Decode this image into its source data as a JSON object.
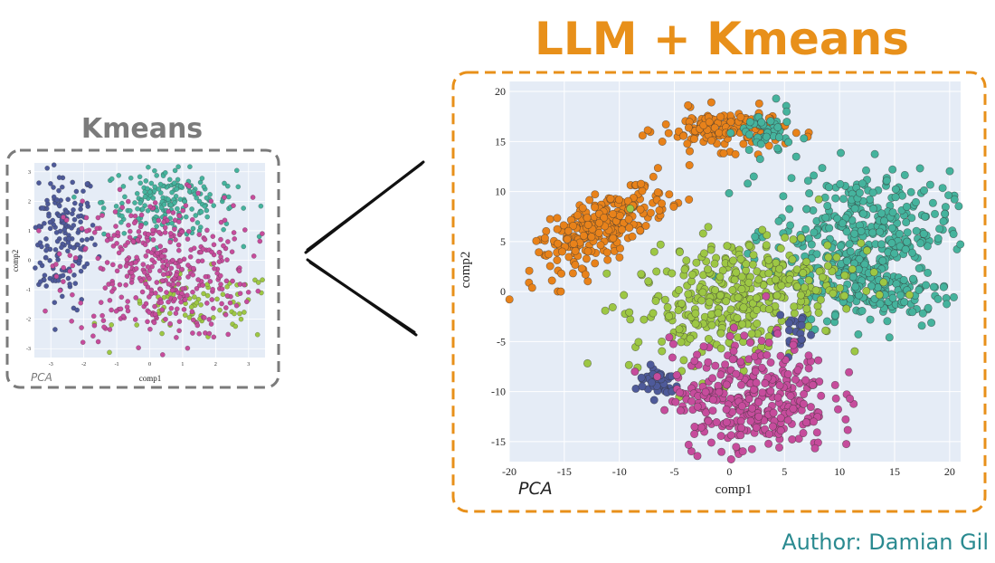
{
  "left_title": "Kmeans",
  "right_title": "LLM + Kmeans",
  "author": "Author: Damian Gil",
  "colors": {
    "accent_orange": "#e8901a",
    "left_title": "#7b7b7b",
    "author": "#2a8a90",
    "plot_bg": "#e5ecf6",
    "grid": "#ffffff",
    "frame_left": "#7b7b7b",
    "frame_right": "#e8901a"
  },
  "chart_data": [
    {
      "type": "scatter",
      "panel": "left",
      "title": "",
      "xlabel": "comp1",
      "ylabel": "comp2",
      "corner_note": "PCA",
      "xlim": [
        -3.5,
        3.5
      ],
      "ylim": [
        -3.3,
        3.3
      ],
      "xticks": [
        "-3",
        "-2",
        "-1",
        "0",
        "1",
        "2",
        "3"
      ],
      "xtick_values": [
        -3,
        -2,
        -1,
        0,
        1,
        2,
        3
      ],
      "yticks": [
        "3",
        "2",
        "1",
        "0",
        "-1",
        "-2",
        "-3"
      ],
      "ytick_values": [
        3,
        2,
        1,
        0,
        -1,
        -2,
        -3
      ],
      "series": [
        {
          "color": "#4e5a9a",
          "cx": -2.7,
          "cy": 0.8,
          "sx": 0.55,
          "sy": 1.2,
          "n": 180
        },
        {
          "color": "#45b39d",
          "cx": 0.6,
          "cy": 2.0,
          "sx": 1.0,
          "sy": 0.6,
          "n": 200
        },
        {
          "color": "#9dc744",
          "cx": 1.5,
          "cy": -1.6,
          "sx": 1.2,
          "sy": 0.6,
          "n": 80
        },
        {
          "color": "#c64c9c",
          "cx": 0.3,
          "cy": -0.3,
          "sx": 1.4,
          "sy": 1.2,
          "n": 420
        }
      ]
    },
    {
      "type": "scatter",
      "panel": "right",
      "title": "",
      "xlabel": "comp1",
      "ylabel": "comp2",
      "corner_note": "PCA",
      "xlim": [
        -20,
        21
      ],
      "ylim": [
        -17,
        21
      ],
      "xticks": [
        "-20",
        "-15",
        "-10",
        "-5",
        "0",
        "5",
        "10",
        "15",
        "20"
      ],
      "xtick_values": [
        -20,
        -15,
        -10,
        -5,
        0,
        5,
        10,
        15,
        20
      ],
      "yticks": [
        "20",
        "15",
        "10",
        "5",
        "0",
        "-5",
        "-10",
        "-15"
      ],
      "ytick_values": [
        20,
        15,
        10,
        5,
        0,
        -5,
        -10,
        -15
      ],
      "series": [
        {
          "color": "#e8821a",
          "cx": -11.5,
          "cy": 6.5,
          "sx": 3.0,
          "sy": 1.5,
          "n": 260,
          "tilt": 0.55
        },
        {
          "color": "#e8821a",
          "cx": -0.5,
          "cy": 16.2,
          "sx": 2.8,
          "sy": 1.0,
          "n": 140
        },
        {
          "color": "#45b39d",
          "cx": 3.2,
          "cy": 15.8,
          "sx": 1.2,
          "sy": 1.2,
          "n": 50
        },
        {
          "color": "#45b39d",
          "cx": 12.0,
          "cy": 6.0,
          "sx": 4.0,
          "sy": 3.0,
          "n": 340
        },
        {
          "color": "#45b39d",
          "cx": 13.5,
          "cy": 0.0,
          "sx": 3.5,
          "sy": 1.8,
          "n": 160
        },
        {
          "color": "#9dc744",
          "cx": 0.5,
          "cy": -0.5,
          "sx": 4.8,
          "sy": 3.0,
          "n": 380,
          "tilt": 0.2
        },
        {
          "color": "#4e5a9a",
          "cx": -6.5,
          "cy": -9.0,
          "sx": 1.0,
          "sy": 0.8,
          "n": 40
        },
        {
          "color": "#4e5a9a",
          "cx": 6.0,
          "cy": -4.0,
          "sx": 0.8,
          "sy": 1.2,
          "n": 20
        },
        {
          "color": "#c64c9c",
          "cx": 2.0,
          "cy": -10.5,
          "sx": 3.6,
          "sy": 2.8,
          "n": 340
        }
      ]
    }
  ]
}
